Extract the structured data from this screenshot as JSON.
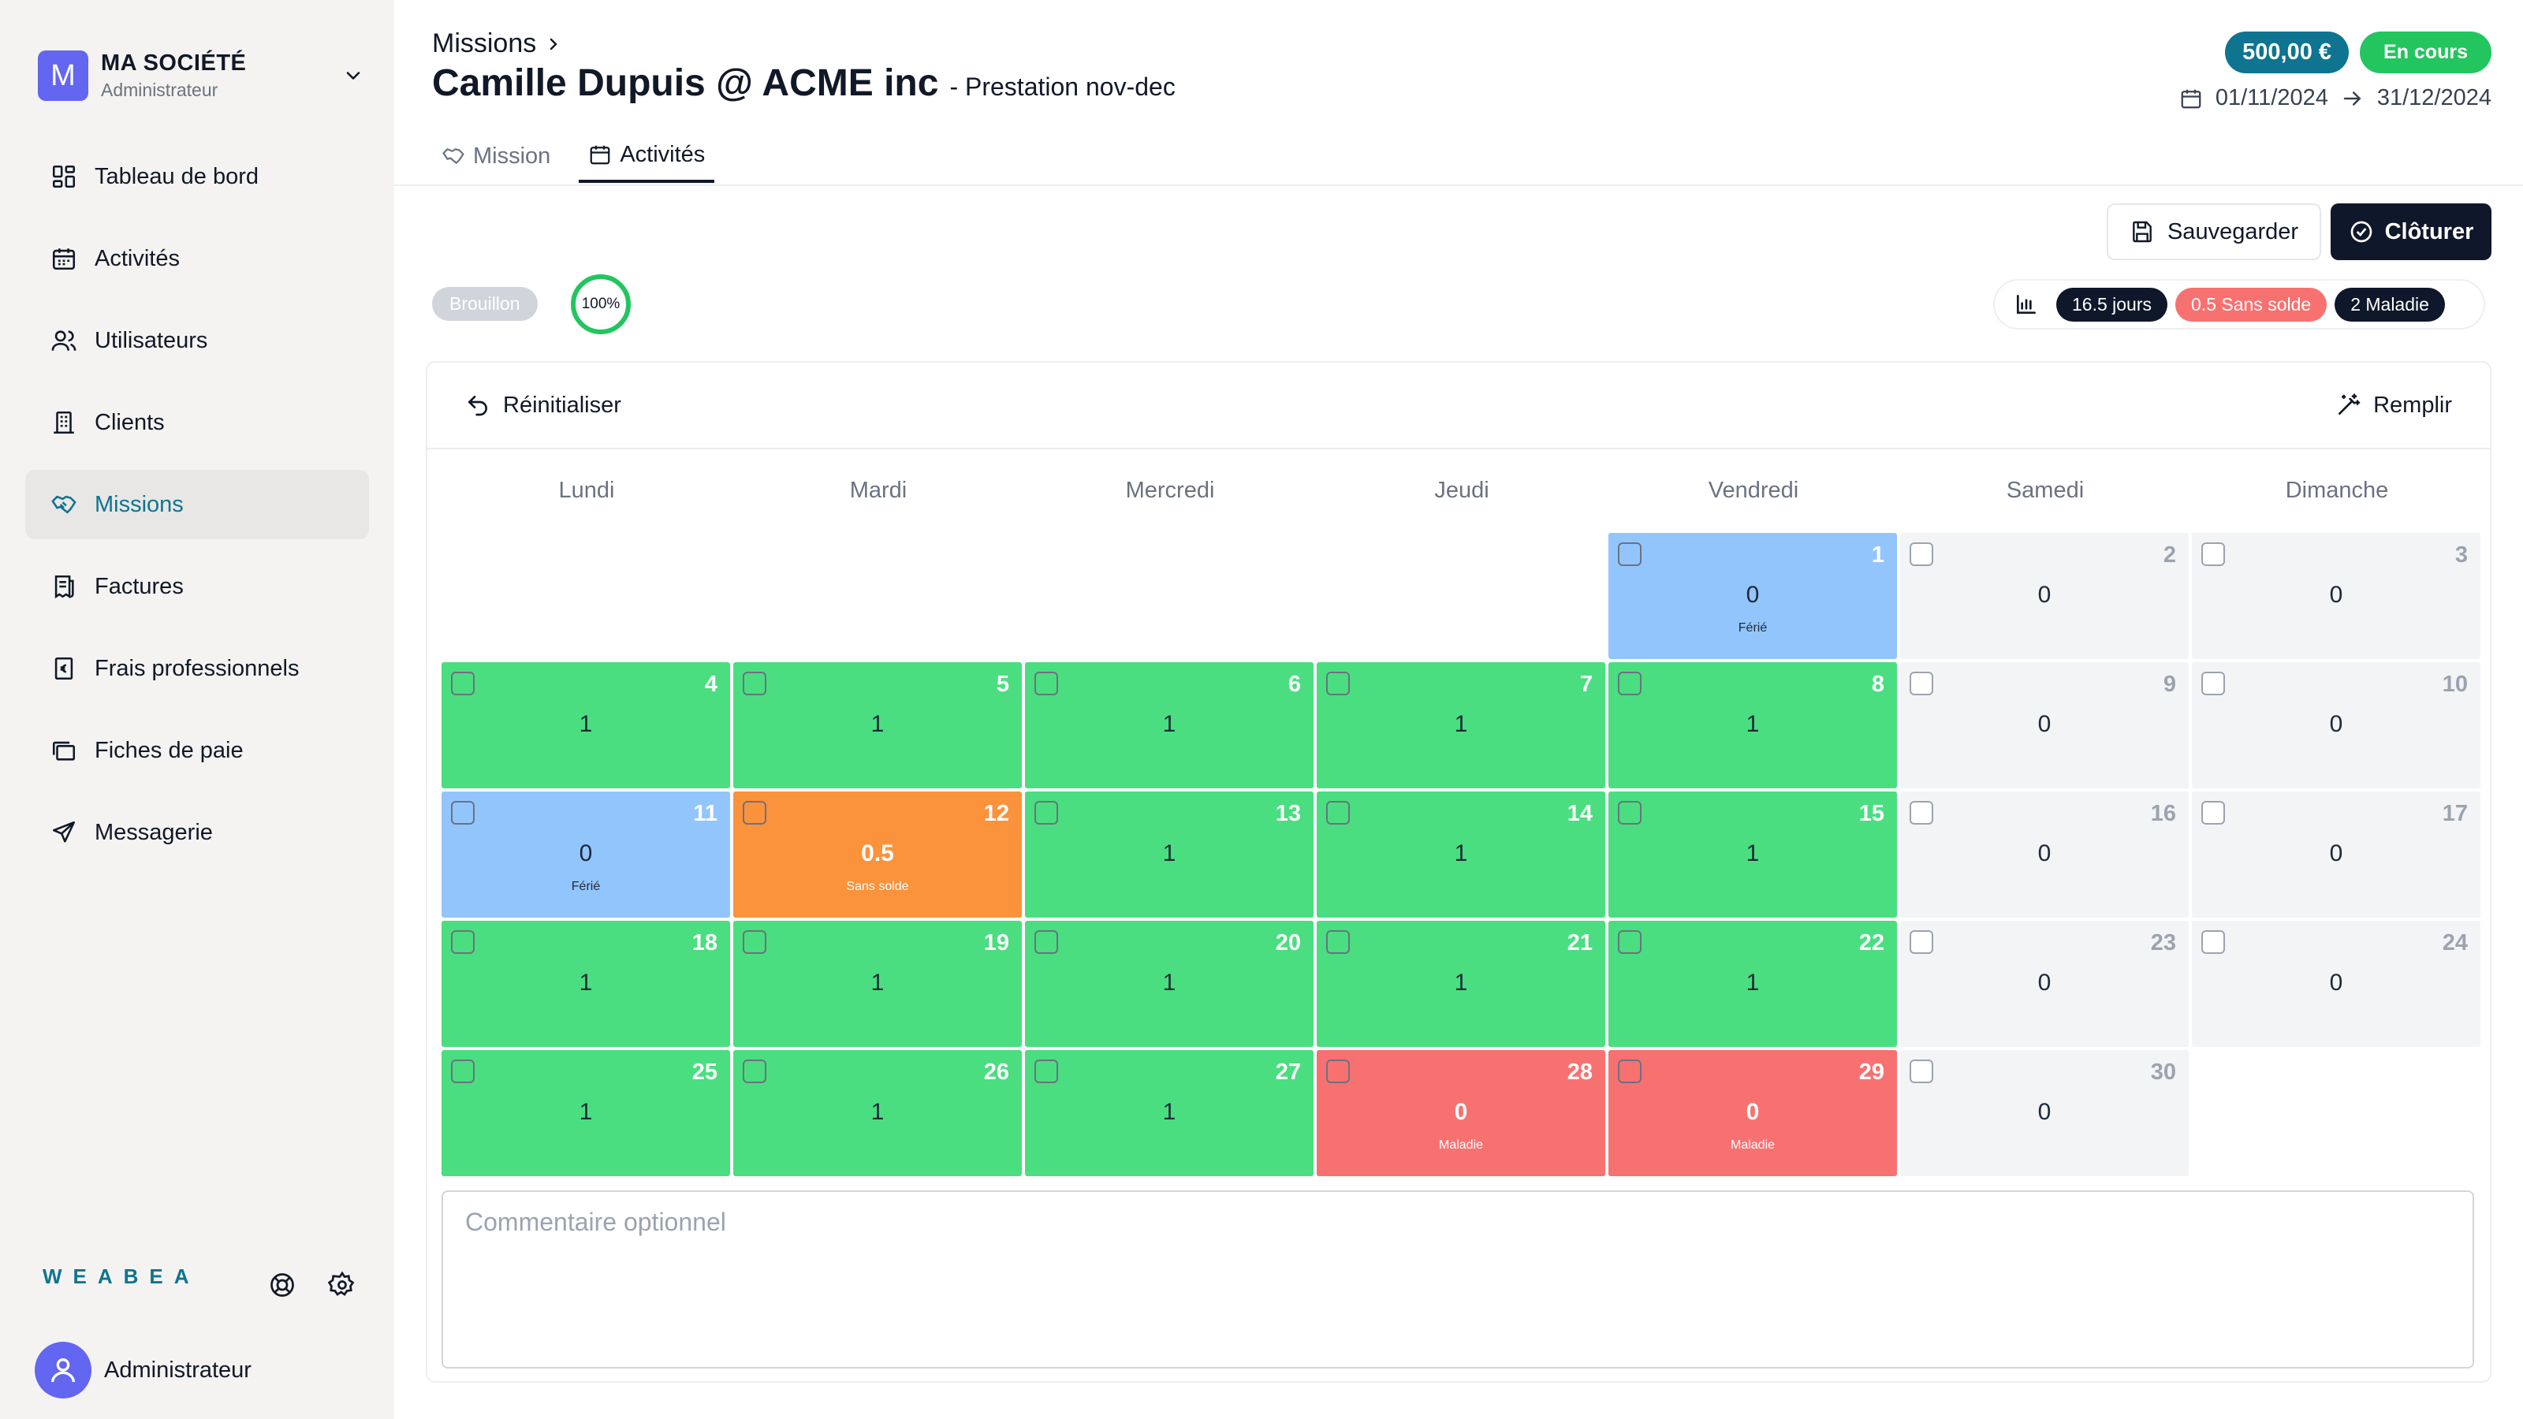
{
  "company": {
    "initial": "M",
    "name": "MA SOCIÉTÉ",
    "role": "Administrateur"
  },
  "nav": [
    {
      "label": "Tableau de bord",
      "icon": "dashboard-icon"
    },
    {
      "label": "Activités",
      "icon": "calendar-icon"
    },
    {
      "label": "Utilisateurs",
      "icon": "users-icon"
    },
    {
      "label": "Clients",
      "icon": "building-icon"
    },
    {
      "label": "Missions",
      "icon": "handshake-icon",
      "active": true
    },
    {
      "label": "Factures",
      "icon": "receipt-icon"
    },
    {
      "label": "Frais professionnels",
      "icon": "expense-icon"
    },
    {
      "label": "Fiches de paie",
      "icon": "payslip-icon"
    },
    {
      "label": "Messagerie",
      "icon": "send-icon"
    }
  ],
  "brand": {
    "logo": "WEABEA"
  },
  "user": {
    "name": "Administrateur"
  },
  "header": {
    "breadcrumb": "Missions",
    "title": "Camille Dupuis @ ACME inc",
    "subtitle": "- Prestation nov-dec",
    "amount": "500,00 €",
    "status": "En cours",
    "start_date": "01/11/2024",
    "end_date": "31/12/2024"
  },
  "tabs": [
    {
      "label": "Mission",
      "icon": "handshake-icon"
    },
    {
      "label": "Activités",
      "icon": "calendar-icon",
      "active": true
    }
  ],
  "actions": {
    "save": "Sauvegarder",
    "close": "Clôturer"
  },
  "state": {
    "draft": "Brouillon",
    "progress": "100%"
  },
  "stats": {
    "days": "16.5 jours",
    "unpaid": "0.5 Sans solde",
    "sick": "2 Maladie"
  },
  "calendar": {
    "reset": "Réinitialiser",
    "fill": "Remplir",
    "weekdays": [
      "Lundi",
      "Mardi",
      "Mercredi",
      "Jeudi",
      "Vendredi",
      "Samedi",
      "Dimanche"
    ],
    "leading_empty": 4,
    "days": [
      {
        "d": "1",
        "v": "0",
        "type": "ferie",
        "label": "Férié"
      },
      {
        "d": "2",
        "v": "0",
        "type": "weekend"
      },
      {
        "d": "3",
        "v": "0",
        "type": "weekend"
      },
      {
        "d": "4",
        "v": "1",
        "type": "work"
      },
      {
        "d": "5",
        "v": "1",
        "type": "work"
      },
      {
        "d": "6",
        "v": "1",
        "type": "work"
      },
      {
        "d": "7",
        "v": "1",
        "type": "work"
      },
      {
        "d": "8",
        "v": "1",
        "type": "work"
      },
      {
        "d": "9",
        "v": "0",
        "type": "weekend"
      },
      {
        "d": "10",
        "v": "0",
        "type": "weekend"
      },
      {
        "d": "11",
        "v": "0",
        "type": "ferie",
        "label": "Férié"
      },
      {
        "d": "12",
        "v": "0.5",
        "type": "sans",
        "label": "Sans solde"
      },
      {
        "d": "13",
        "v": "1",
        "type": "work"
      },
      {
        "d": "14",
        "v": "1",
        "type": "work"
      },
      {
        "d": "15",
        "v": "1",
        "type": "work"
      },
      {
        "d": "16",
        "v": "0",
        "type": "weekend"
      },
      {
        "d": "17",
        "v": "0",
        "type": "weekend"
      },
      {
        "d": "18",
        "v": "1",
        "type": "work"
      },
      {
        "d": "19",
        "v": "1",
        "type": "work"
      },
      {
        "d": "20",
        "v": "1",
        "type": "work"
      },
      {
        "d": "21",
        "v": "1",
        "type": "work"
      },
      {
        "d": "22",
        "v": "1",
        "type": "work"
      },
      {
        "d": "23",
        "v": "0",
        "type": "weekend"
      },
      {
        "d": "24",
        "v": "0",
        "type": "weekend"
      },
      {
        "d": "25",
        "v": "1",
        "type": "work"
      },
      {
        "d": "26",
        "v": "1",
        "type": "work"
      },
      {
        "d": "27",
        "v": "1",
        "type": "work"
      },
      {
        "d": "28",
        "v": "0",
        "type": "maladie",
        "label": "Maladie"
      },
      {
        "d": "29",
        "v": "0",
        "type": "maladie",
        "label": "Maladie"
      },
      {
        "d": "30",
        "v": "0",
        "type": "weekend"
      }
    ]
  },
  "comment": {
    "placeholder": "Commentaire optionnel"
  },
  "colors": {
    "accent": "#0e7490",
    "work": "#4ade80",
    "ferie": "#93c5fd",
    "sans_solde": "#fb923c",
    "maladie": "#f87171",
    "status": "#22c55e"
  }
}
